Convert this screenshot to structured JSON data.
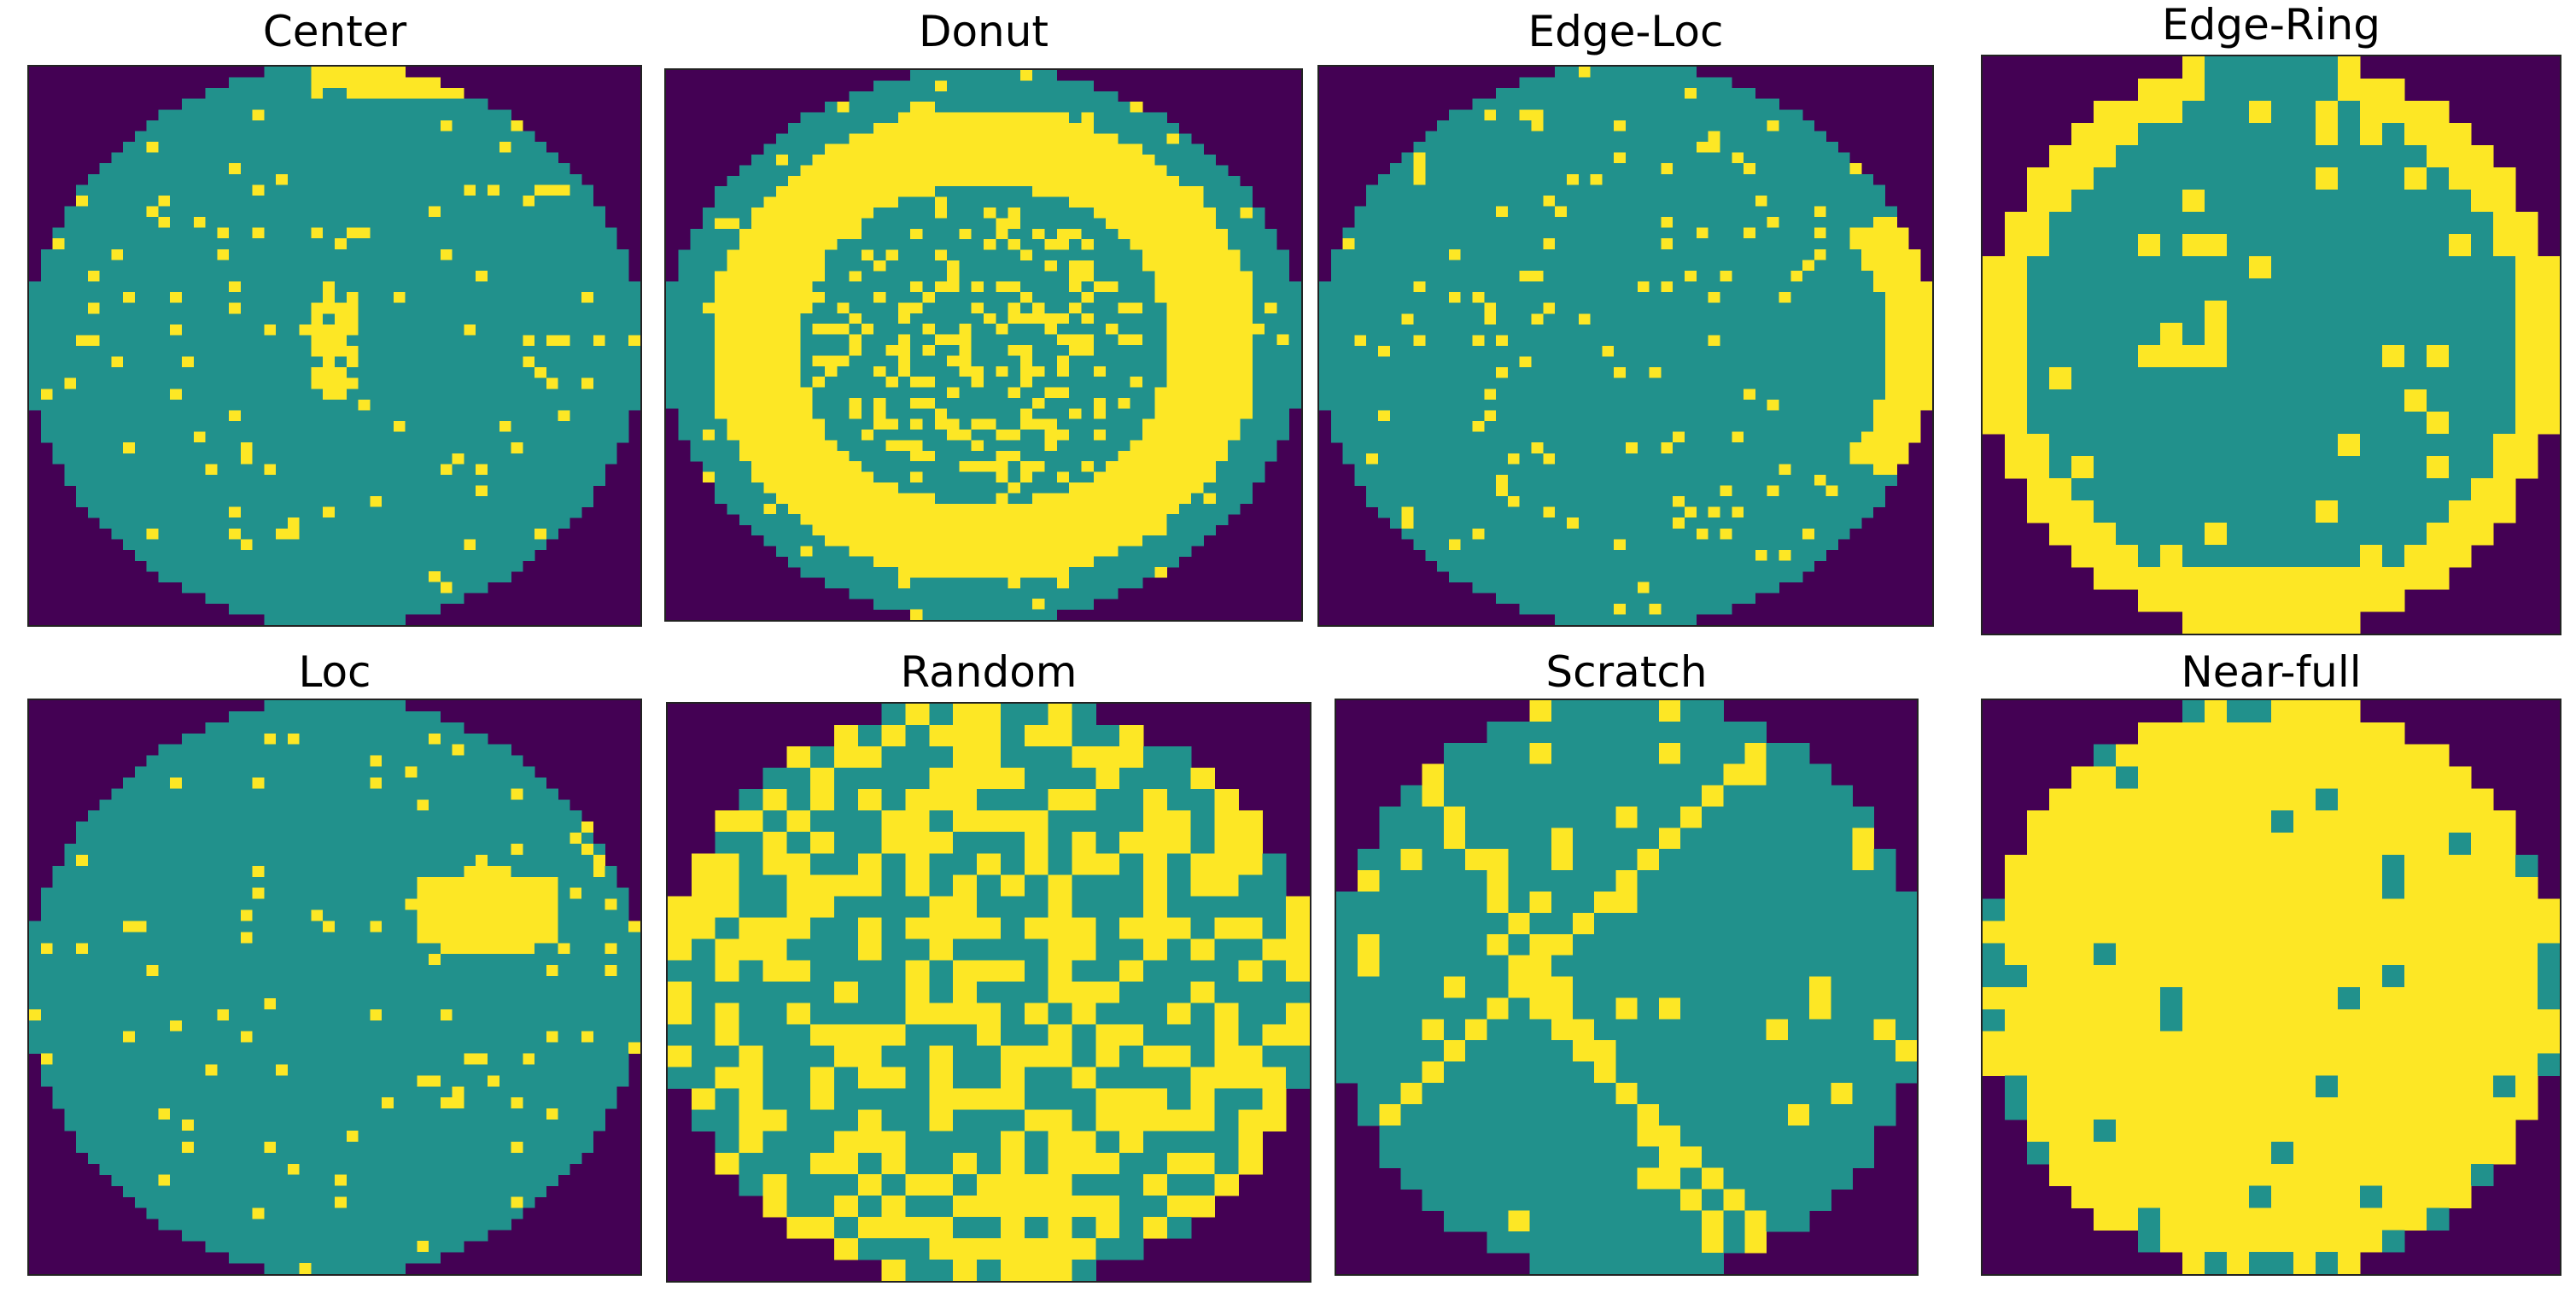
{
  "colors": {
    "background_die": "#440154",
    "pass_die": "#21918c",
    "fail_die": "#fde725"
  },
  "panels": [
    {
      "title": "Center",
      "grid": 52,
      "pattern": "center",
      "seed": 11
    },
    {
      "title": "Donut",
      "grid": 52,
      "pattern": "donut",
      "seed": 23
    },
    {
      "title": "Edge-Loc",
      "grid": 52,
      "pattern": "edge-loc",
      "seed": 37
    },
    {
      "title": "Edge-Ring",
      "grid": 26,
      "pattern": "edge-ring",
      "seed": 41
    },
    {
      "title": "Loc",
      "grid": 52,
      "pattern": "loc",
      "seed": 53
    },
    {
      "title": "Random",
      "grid": 27,
      "pattern": "random",
      "seed": 67
    },
    {
      "title": "Scratch",
      "grid": 27,
      "pattern": "scratch",
      "seed": 79
    },
    {
      "title": "Near-full",
      "grid": 26,
      "pattern": "near-full",
      "seed": 83
    }
  ]
}
